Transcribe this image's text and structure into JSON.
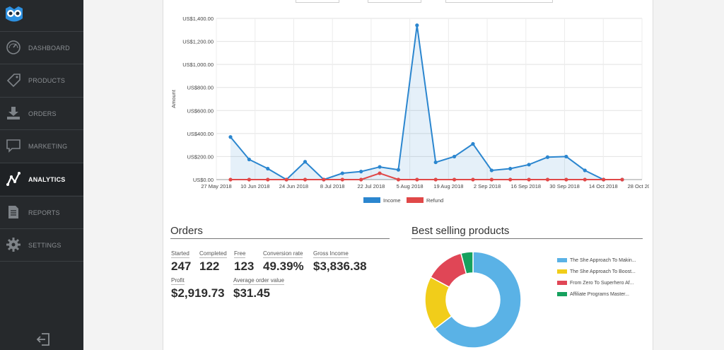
{
  "sidebar": {
    "items": [
      {
        "label": "DASHBOARD",
        "icon": "gauge-icon"
      },
      {
        "label": "PRODUCTS",
        "icon": "tag-icon"
      },
      {
        "label": "ORDERS",
        "icon": "download-icon"
      },
      {
        "label": "MARKETING",
        "icon": "chat-bubble-icon"
      },
      {
        "label": "ANALYTICS",
        "icon": "analytics-icon",
        "active": true
      },
      {
        "label": "REPORTS",
        "icon": "document-icon"
      },
      {
        "label": "SETTINGS",
        "icon": "gear-icon"
      }
    ]
  },
  "chart_data": [
    {
      "type": "line",
      "xlabel": "",
      "ylabel": "Amount",
      "ylim": [
        0,
        1400
      ],
      "yticks": [
        "US$0.00",
        "US$200.00",
        "US$400.00",
        "US$600.00",
        "US$800.00",
        "US$1,000.00",
        "US$1,200.00",
        "US$1,400.00"
      ],
      "x_tick_labels": [
        "27 May 2018",
        "10 Jun 2018",
        "24 Jun 2018",
        "8 Jul 2018",
        "22 Jul 2018",
        "5 Aug 2018",
        "19 Aug 2018",
        "2 Sep 2018",
        "16 Sep 2018",
        "30 Sep 2018",
        "14 Oct 2018",
        "28 Oct 2018"
      ],
      "grid": true,
      "legend": "bottom",
      "series": [
        {
          "name": "Income",
          "color": "#2b86cf",
          "values": [
            370,
            175,
            95,
            0,
            155,
            0,
            55,
            70,
            110,
            85,
            1340,
            150,
            200,
            310,
            80,
            95,
            130,
            195,
            200,
            80,
            0,
            0
          ]
        },
        {
          "name": "Refund",
          "color": "#e04848",
          "values": [
            0,
            0,
            0,
            0,
            0,
            0,
            0,
            0,
            55,
            0,
            0,
            0,
            0,
            0,
            0,
            0,
            0,
            0,
            0,
            0,
            0,
            0
          ]
        }
      ]
    },
    {
      "type": "pie",
      "title": "Best selling products",
      "categories": [
        "The She Approach To Makin...",
        "The She Approach To Boost...",
        "From Zero To Superhero Af...",
        "Affiliate Programs Master..."
      ],
      "values": [
        64,
        18,
        13,
        4
      ],
      "colors": [
        "#5ab2e6",
        "#f1cd1a",
        "#e04656",
        "#16a15e"
      ]
    }
  ],
  "orders": {
    "title": "Orders",
    "started_label": "Started",
    "started": "247",
    "completed_label": "Completed",
    "completed": "122",
    "free_label": "Free",
    "free": "123",
    "conversion_label": "Conversion rate",
    "conversion": "49.39%",
    "gross_label": "Gross Income",
    "gross": "$3,836.38",
    "profit_label": "Profit",
    "profit": "$2,919.73",
    "aov_label": "Average order value",
    "aov": "$31.45"
  },
  "best_selling": {
    "title": "Best selling products"
  }
}
